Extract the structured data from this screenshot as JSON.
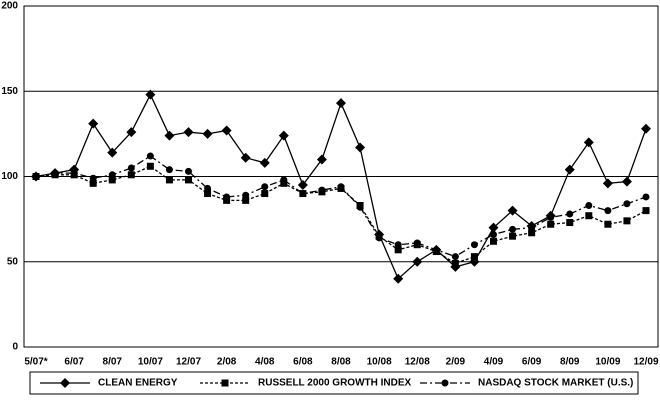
{
  "chart_data": {
    "type": "line",
    "categories": [
      "5/07*",
      null,
      "6/07",
      null,
      "8/07",
      null,
      "10/07",
      null,
      "12/07",
      null,
      "2/08",
      null,
      "4/08",
      null,
      "6/08",
      null,
      "8/08",
      null,
      "10/08",
      null,
      "12/08",
      null,
      "2/09",
      null,
      "4/09",
      null,
      "6/09",
      null,
      "8/09",
      null,
      "10/09",
      null,
      "12/09"
    ],
    "series": [
      {
        "name": "CLEAN ENERGY",
        "color": "#000000",
        "marker": "diamond",
        "dash": "solid",
        "values": [
          100,
          102,
          104,
          131,
          114,
          126,
          148,
          124,
          126,
          125,
          127,
          111,
          108,
          124,
          95,
          110,
          143,
          117,
          66,
          40,
          50,
          57,
          47,
          50,
          70,
          80,
          71,
          77,
          104,
          120,
          96,
          97,
          128
        ]
      },
      {
        "name": "RUSSELL 2000 GROWTH INDEX",
        "color": "#000000",
        "marker": "square",
        "dash": "dotted",
        "values": [
          100,
          101,
          101,
          96,
          98,
          101,
          106,
          98,
          98,
          90,
          86,
          86,
          90,
          96,
          90,
          91,
          93,
          83,
          65,
          57,
          60,
          56,
          49,
          53,
          62,
          65,
          67,
          72,
          73,
          77,
          72,
          74,
          80
        ]
      },
      {
        "name": "NASDAQ STOCK MARKET (U.S.)",
        "color": "#000000",
        "marker": "circle",
        "dash": "dashdot",
        "values": [
          100,
          102,
          102,
          99,
          101,
          105,
          112,
          104,
          103,
          93,
          88,
          89,
          94,
          98,
          90,
          92,
          94,
          82,
          64,
          60,
          61,
          57,
          53,
          60,
          66,
          69,
          70,
          76,
          78,
          83,
          80,
          84,
          88
        ]
      }
    ],
    "ylim": [
      0,
      200
    ],
    "yticks": [
      0,
      50,
      100,
      150,
      200
    ],
    "grid": true,
    "legend": "bottom"
  }
}
